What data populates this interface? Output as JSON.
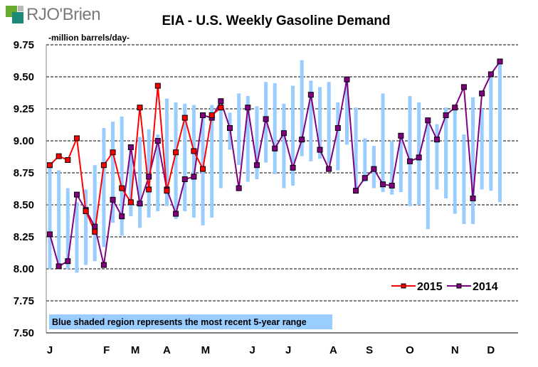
{
  "brand": {
    "name": "RJO'Brien"
  },
  "chart_data": {
    "type": "line",
    "title": "EIA - U.S. Weekly Gasoline Demand",
    "ylabel": "-million barrels/day-",
    "xlabel": "",
    "ylim": [
      7.5,
      9.75
    ],
    "yticks": [
      "9.75",
      "9.50",
      "9.25",
      "9.00",
      "8.75",
      "8.50",
      "8.25",
      "8.00",
      "7.75",
      "7.50"
    ],
    "ytick_values": [
      9.75,
      9.5,
      9.25,
      9.0,
      8.75,
      8.5,
      8.25,
      8.0,
      7.75,
      7.5
    ],
    "xticks": [
      "J",
      "F",
      "M",
      "A",
      "M",
      "J",
      "J",
      "A",
      "S",
      "O",
      "N",
      "D"
    ],
    "xtick_weeks": [
      0,
      6.3,
      9.5,
      13,
      17.3,
      22.5,
      26.5,
      31.5,
      35.5,
      40,
      45,
      49
    ],
    "grid": "horizontal-dashed",
    "legend_position": "bottom-right",
    "annotation": "Blue shaded region represents the most recent 5-year range",
    "range_band": {
      "name": "5-year range",
      "color": "#99ccff",
      "low": [
        8.0,
        8.0,
        8.0,
        7.97,
        8.03,
        8.06,
        8.17,
        8.36,
        8.26,
        8.41,
        8.32,
        8.4,
        8.45,
        8.49,
        8.39,
        8.45,
        8.4,
        8.34,
        8.4,
        8.63,
        8.93,
        8.81,
        8.68,
        8.7,
        8.83,
        8.74,
        8.63,
        8.65,
        8.88,
        8.84,
        8.86,
        8.82,
        8.77,
        8.97,
        8.6,
        8.68,
        8.63,
        8.6,
        8.58,
        8.6,
        8.49,
        8.5,
        8.31,
        8.62,
        8.55,
        8.43,
        8.35,
        8.35,
        8.62,
        8.61,
        8.52
      ],
      "high": [
        8.8,
        8.77,
        8.63,
        8.52,
        8.62,
        8.81,
        9.1,
        9.15,
        9.19,
        8.97,
        9.03,
        9.09,
        9.05,
        9.33,
        9.3,
        9.29,
        9.28,
        9.2,
        9.28,
        9.3,
        9.22,
        9.37,
        9.35,
        9.27,
        9.46,
        9.45,
        9.29,
        9.43,
        9.63,
        9.47,
        9.42,
        9.46,
        9.3,
        9.48,
        9.26,
        9.02,
        8.96,
        9.37,
        9.0,
        9.05,
        9.35,
        9.3,
        9.14,
        9.13,
        9.26,
        9.25,
        9.05,
        9.34,
        9.25,
        9.51,
        9.6
      ]
    },
    "series": [
      {
        "name": "2015",
        "color": "#ff0000",
        "marker_color": "#ff0000",
        "weeks": [
          0,
          1,
          2,
          3,
          4,
          5,
          6,
          7,
          8,
          9,
          10,
          11,
          12,
          13,
          14,
          15,
          16,
          17,
          18,
          19
        ],
        "values": [
          8.81,
          8.88,
          8.85,
          9.02,
          8.45,
          8.29,
          8.81,
          8.91,
          8.63,
          8.52,
          9.26,
          8.62,
          9.43,
          8.61,
          8.91,
          9.18,
          8.92,
          8.78,
          9.2,
          9.26
        ]
      },
      {
        "name": "2014",
        "color": "#800080",
        "marker_color": "#800080",
        "weeks": [
          0,
          1,
          2,
          3,
          4,
          5,
          6,
          7,
          8,
          9,
          10,
          11,
          12,
          13,
          14,
          15,
          16,
          17,
          18,
          19,
          20,
          21,
          22,
          23,
          24,
          25,
          26,
          27,
          28,
          29,
          30,
          31,
          32,
          33,
          34,
          35,
          36,
          37,
          38,
          39,
          40,
          41,
          42,
          43,
          44,
          45,
          46,
          47,
          48,
          49,
          50
        ],
        "values": [
          8.27,
          8.02,
          8.06,
          8.58,
          8.46,
          8.33,
          8.03,
          8.54,
          8.41,
          8.95,
          8.51,
          8.72,
          9.0,
          8.62,
          8.43,
          8.7,
          8.72,
          9.2,
          9.18,
          9.31,
          9.1,
          8.63,
          9.26,
          8.81,
          9.17,
          8.94,
          9.06,
          8.79,
          9.01,
          9.36,
          8.93,
          8.78,
          9.1,
          9.48,
          8.61,
          8.71,
          8.78,
          8.66,
          8.65,
          9.04,
          8.84,
          8.87,
          9.16,
          9.01,
          9.2,
          9.26,
          9.42,
          8.55,
          9.37,
          9.52,
          9.62
        ]
      }
    ]
  }
}
